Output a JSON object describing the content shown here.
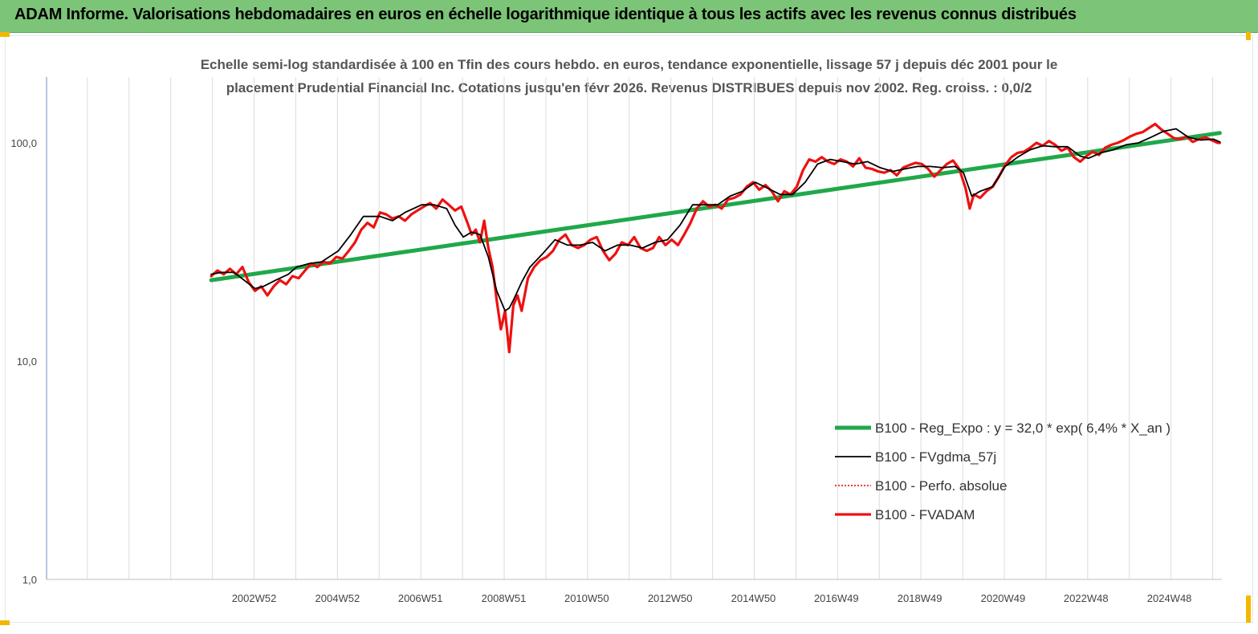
{
  "header": {
    "title": "ADAM Informe. Valorisations hebdomadaires en euros en échelle logarithmique identique à tous les actifs avec les revenus connus distribués"
  },
  "colors": {
    "header_bg": "#7cc477",
    "reg_expo": "#20a84a",
    "fvgdma": "#000000",
    "perfo": "#e00000",
    "fvadam": "#ee1111"
  },
  "chart_data": {
    "type": "line",
    "title_line1": "Echelle semi-log standardisée à 100 en Tfin des cours hebdo. en euros, tendance exponentielle, lissage 57 j depuis déc 2001 pour le",
    "title_line2": "placement Prudential Financial Inc. Cotations jusqu'en févr 2026. Revenus DISTRIBUES depuis nov 2002. Reg. croiss. : 0,0/2",
    "y_scale": "log",
    "ylim": [
      1,
      190
    ],
    "y_ticks": [
      1,
      10,
      100
    ],
    "y_tick_labels": [
      "1,0",
      "10,0",
      "100,0"
    ],
    "xlim": [
      1998.0,
      2026.2
    ],
    "x_tick_labels": [
      "2002W52",
      "2004W52",
      "2006W51",
      "2008W51",
      "2010W50",
      "2012W50",
      "2014W50",
      "2016W49",
      "2018W49",
      "2020W49",
      "2022W48",
      "2024W48"
    ],
    "x_tick_positions": [
      2002.98,
      2004.98,
      2006.97,
      2008.97,
      2010.96,
      2012.96,
      2014.96,
      2016.95,
      2018.95,
      2020.95,
      2022.94,
      2024.94
    ],
    "grid": "vertical",
    "legend_position": "bottom-right",
    "series": [
      {
        "name": "B100 - Reg_Expo : y = 32,0 *  exp( 6,4% *  X_an )",
        "style": "thick-line",
        "x": [
          2001.95,
          2026.15
        ],
        "y": [
          23.5,
          111
        ]
      },
      {
        "name": "B100 - FVgdma_57j",
        "style": "line",
        "x": [
          2001.95,
          2002.2,
          2002.5,
          2002.8,
          2003.0,
          2003.2,
          2003.5,
          2003.8,
          2004.0,
          2004.3,
          2004.6,
          2005.0,
          2005.3,
          2005.6,
          2006.0,
          2006.3,
          2006.6,
          2007.0,
          2007.3,
          2007.6,
          2007.8,
          2008.0,
          2008.2,
          2008.4,
          2008.6,
          2008.8,
          2009.0,
          2009.1,
          2009.2,
          2009.4,
          2009.6,
          2009.9,
          2010.2,
          2010.5,
          2010.8,
          2011.1,
          2011.4,
          2011.7,
          2012.0,
          2012.3,
          2012.6,
          2012.9,
          2013.2,
          2013.5,
          2013.8,
          2014.1,
          2014.4,
          2014.7,
          2015.0,
          2015.3,
          2015.6,
          2015.9,
          2016.2,
          2016.5,
          2016.8,
          2017.1,
          2017.4,
          2017.7,
          2018.0,
          2018.3,
          2018.6,
          2018.9,
          2019.2,
          2019.5,
          2019.8,
          2020.0,
          2020.2,
          2020.4,
          2020.7,
          2021.0,
          2021.3,
          2021.6,
          2021.9,
          2022.2,
          2022.5,
          2022.8,
          2023.0,
          2023.3,
          2023.6,
          2023.9,
          2024.2,
          2024.5,
          2024.8,
          2025.1,
          2025.4,
          2025.7,
          2026.0,
          2026.15
        ],
        "y": [
          25,
          25.5,
          25.5,
          23,
          21.5,
          22,
          23.5,
          25,
          27,
          28,
          28.5,
          32,
          38,
          46,
          46,
          44,
          48,
          52,
          52,
          50,
          42,
          37,
          39,
          38,
          30,
          21,
          17,
          17.5,
          19,
          23,
          27,
          31,
          36,
          34,
          34,
          35,
          32,
          34,
          34,
          33,
          35,
          36,
          42,
          52,
          52,
          52,
          57,
          60,
          66,
          62,
          58,
          58,
          66,
          80,
          84,
          82,
          80,
          82,
          77,
          74,
          76,
          78,
          78,
          77,
          78,
          73,
          57,
          60,
          63,
          78,
          86,
          93,
          97,
          96,
          96,
          87,
          85,
          90,
          93,
          98,
          100,
          106,
          113,
          116,
          106,
          103,
          104,
          101
        ]
      },
      {
        "name": "B100 - Perfo. absolue",
        "style": "dotted",
        "x": [],
        "y": []
      },
      {
        "name": "B100 - FVADAM",
        "style": "thick-line",
        "x": [
          2001.95,
          2002.1,
          2002.25,
          2002.4,
          2002.55,
          2002.7,
          2002.85,
          2003.0,
          2003.15,
          2003.3,
          2003.45,
          2003.6,
          2003.75,
          2003.9,
          2004.05,
          2004.2,
          2004.35,
          2004.5,
          2004.65,
          2004.8,
          2004.95,
          2005.1,
          2005.25,
          2005.4,
          2005.55,
          2005.7,
          2005.85,
          2006.0,
          2006.15,
          2006.3,
          2006.45,
          2006.6,
          2006.75,
          2006.9,
          2007.05,
          2007.2,
          2007.35,
          2007.5,
          2007.65,
          2007.8,
          2007.95,
          2008.1,
          2008.2,
          2008.3,
          2008.4,
          2008.5,
          2008.6,
          2008.7,
          2008.8,
          2008.9,
          2009.0,
          2009.1,
          2009.2,
          2009.3,
          2009.4,
          2009.55,
          2009.7,
          2009.85,
          2010.0,
          2010.15,
          2010.3,
          2010.45,
          2010.6,
          2010.75,
          2010.9,
          2011.05,
          2011.2,
          2011.35,
          2011.5,
          2011.65,
          2011.8,
          2011.95,
          2012.1,
          2012.25,
          2012.4,
          2012.55,
          2012.7,
          2012.85,
          2013.0,
          2013.15,
          2013.3,
          2013.45,
          2013.6,
          2013.75,
          2013.9,
          2014.05,
          2014.2,
          2014.35,
          2014.5,
          2014.65,
          2014.8,
          2014.95,
          2015.1,
          2015.25,
          2015.4,
          2015.55,
          2015.7,
          2015.85,
          2016.0,
          2016.15,
          2016.3,
          2016.45,
          2016.6,
          2016.75,
          2016.9,
          2017.05,
          2017.2,
          2017.35,
          2017.5,
          2017.65,
          2017.8,
          2017.95,
          2018.1,
          2018.25,
          2018.4,
          2018.55,
          2018.7,
          2018.85,
          2019.0,
          2019.15,
          2019.3,
          2019.45,
          2019.6,
          2019.75,
          2019.9,
          2020.05,
          2020.15,
          2020.25,
          2020.4,
          2020.55,
          2020.7,
          2020.85,
          2021.0,
          2021.15,
          2021.3,
          2021.45,
          2021.6,
          2021.75,
          2021.9,
          2022.05,
          2022.2,
          2022.35,
          2022.5,
          2022.65,
          2022.8,
          2022.95,
          2023.1,
          2023.25,
          2023.4,
          2023.55,
          2023.7,
          2023.85,
          2024.0,
          2024.15,
          2024.3,
          2024.45,
          2024.6,
          2024.75,
          2024.9,
          2025.05,
          2025.2,
          2025.35,
          2025.5,
          2025.65,
          2025.8,
          2025.95,
          2026.1,
          2026.15
        ],
        "y": [
          24.5,
          26,
          25,
          26.5,
          25,
          27,
          23,
          21,
          22,
          20,
          22,
          23.5,
          22.5,
          24.5,
          24,
          26,
          28,
          27,
          28.5,
          28,
          30,
          29.5,
          32,
          35,
          40,
          43,
          41,
          48,
          47,
          45,
          46,
          44,
          47,
          49,
          51,
          53,
          50,
          55,
          52,
          49,
          51,
          43,
          38,
          40,
          35,
          44,
          33,
          27,
          19,
          14,
          17,
          11,
          18,
          20,
          17,
          24,
          27,
          29,
          30,
          32,
          36,
          38,
          34,
          33,
          34,
          36,
          37,
          32,
          29,
          31,
          35,
          34,
          37,
          33,
          32,
          33,
          37,
          34,
          36,
          34,
          38,
          43,
          50,
          54,
          51,
          52,
          50,
          55,
          56,
          58,
          63,
          66,
          61,
          64,
          60,
          54,
          60,
          58,
          63,
          75,
          84,
          82,
          86,
          82,
          80,
          84,
          82,
          78,
          85,
          77,
          76,
          74,
          73,
          75,
          71,
          77,
          79,
          81,
          80,
          76,
          70,
          75,
          80,
          83,
          76,
          62,
          50,
          58,
          56,
          60,
          63,
          70,
          79,
          86,
          90,
          91,
          95,
          100,
          97,
          102,
          98,
          92,
          95,
          86,
          82,
          87,
          91,
          88,
          95,
          98,
          100,
          103,
          107,
          110,
          112,
          117,
          122,
          115,
          110,
          105,
          104,
          107,
          101,
          104,
          106,
          103,
          100,
          100
        ]
      }
    ]
  }
}
